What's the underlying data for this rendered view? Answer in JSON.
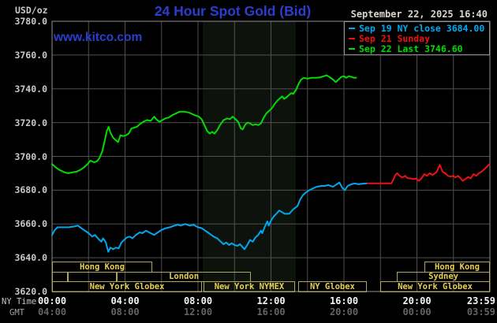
{
  "header": {
    "unit_label": "USD/oz",
    "title": "24 Hour Spot Gold (Bid)",
    "watermark": "www.kitco.com",
    "datetime": "September 22, 2025 16:40"
  },
  "colors": {
    "sep19": "#00a8f0",
    "sep21": "#ee1111",
    "sep22": "#00dd00",
    "grid": "#4f4f4f",
    "border": "#8f8f8f",
    "band": "#0d130c",
    "session": "#b0a558",
    "accent_blue": "#2c3ecf"
  },
  "legend": [
    {
      "label": "Sep 19 NY close 3684.00",
      "series": "sep19"
    },
    {
      "label": "Sep 21 Sunday",
      "series": "sep21"
    },
    {
      "label": "Sep 22 Last 3746.60",
      "series": "sep22"
    }
  ],
  "axes": {
    "y_ticks": [
      "3780.0",
      "3760.0",
      "3740.0",
      "3720.0",
      "3700.0",
      "3680.0",
      "3660.0",
      "3640.0",
      "3620.0"
    ],
    "x_row1_label": "NY Time",
    "x_row2_label": "GMT",
    "x_row1": [
      "00:00",
      "04:00",
      "08:00",
      "12:00",
      "16:00",
      "20:00",
      "23:59"
    ],
    "x_row2": [
      "04:00",
      "08:00",
      "12:00",
      "16:00",
      "20:00",
      "00:00",
      "03:59"
    ],
    "x_tick_hours": [
      0,
      4,
      8,
      12,
      16,
      20,
      23.983
    ]
  },
  "sessions": [
    {
      "row": 0,
      "label": "Hong Kong",
      "start": 0,
      "end": 5.49
    },
    {
      "row": 0,
      "label": "Hong Kong",
      "start": 20.41,
      "end": 24
    },
    {
      "row": 1,
      "label": "",
      "start": 0,
      "end": 0.87
    },
    {
      "row": 1,
      "label": "",
      "start": 0.87,
      "end": 3.55
    },
    {
      "row": 1,
      "label": "London",
      "start": 3.55,
      "end": 10.9
    },
    {
      "row": 1,
      "label": "Sydney",
      "start": 18.9,
      "end": 24
    },
    {
      "row": 2,
      "label": "New York Globex",
      "start": 0,
      "end": 8.22
    },
    {
      "row": 2,
      "label": "New York NYMEX",
      "start": 8.3,
      "end": 13.32
    },
    {
      "row": 2,
      "label": "NY Globex",
      "start": 13.49,
      "end": 17.25
    },
    {
      "row": 2,
      "label": "New York Globex",
      "start": 17.99,
      "end": 24
    }
  ],
  "chart_data": {
    "type": "line",
    "title": "24 Hour Spot Gold (Bid)",
    "xlabel": "NY Time (hours 00:00-23:59)",
    "ylabel": "USD/oz",
    "ylim": [
      3620,
      3780
    ],
    "y_tick_step": 20,
    "xlim_hours": [
      0,
      24
    ],
    "grid": true,
    "legend_position": "top-right",
    "shaded_band_hours": [
      8.26,
      13.36
    ],
    "series": [
      {
        "name": "Sep 19 NY close 3684.00",
        "series": "sep19",
        "points": [
          [
            0,
            3653.5
          ],
          [
            0.15,
            3656.5
          ],
          [
            0.3,
            3658
          ],
          [
            0.6,
            3658
          ],
          [
            0.9,
            3658
          ],
          [
            1.2,
            3658.5
          ],
          [
            1.42,
            3659
          ],
          [
            1.6,
            3657.5
          ],
          [
            1.8,
            3656
          ],
          [
            2.0,
            3654.5
          ],
          [
            2.2,
            3652.5
          ],
          [
            2.35,
            3653.5
          ],
          [
            2.55,
            3651
          ],
          [
            2.7,
            3649.5
          ],
          [
            2.8,
            3651.5
          ],
          [
            2.95,
            3649
          ],
          [
            3.08,
            3643.5
          ],
          [
            3.2,
            3646
          ],
          [
            3.35,
            3645
          ],
          [
            3.5,
            3646
          ],
          [
            3.65,
            3645.5
          ],
          [
            3.8,
            3649
          ],
          [
            3.95,
            3650.5
          ],
          [
            4.1,
            3652
          ],
          [
            4.25,
            3652.5
          ],
          [
            4.4,
            3651.5
          ],
          [
            4.6,
            3653.5
          ],
          [
            4.8,
            3655
          ],
          [
            4.95,
            3654.5
          ],
          [
            5.15,
            3656
          ],
          [
            5.4,
            3654.5
          ],
          [
            5.6,
            3653.5
          ],
          [
            5.8,
            3655
          ],
          [
            6.0,
            3656.5
          ],
          [
            6.25,
            3657.5
          ],
          [
            6.45,
            3658
          ],
          [
            6.7,
            3659
          ],
          [
            6.9,
            3659.5
          ],
          [
            7.05,
            3659
          ],
          [
            7.3,
            3660
          ],
          [
            7.55,
            3659
          ],
          [
            7.75,
            3659.5
          ],
          [
            8.0,
            3658
          ],
          [
            8.2,
            3657.5
          ],
          [
            8.4,
            3656
          ],
          [
            8.6,
            3654.5
          ],
          [
            8.85,
            3652.5
          ],
          [
            9.05,
            3651.5
          ],
          [
            9.25,
            3649.5
          ],
          [
            9.4,
            3648
          ],
          [
            9.55,
            3649
          ],
          [
            9.7,
            3647.5
          ],
          [
            9.85,
            3648.5
          ],
          [
            10.0,
            3647.5
          ],
          [
            10.15,
            3647
          ],
          [
            10.3,
            3648
          ],
          [
            10.42,
            3646.5
          ],
          [
            10.55,
            3645
          ],
          [
            10.7,
            3647.5
          ],
          [
            10.85,
            3650.5
          ],
          [
            11.0,
            3649.5
          ],
          [
            11.15,
            3652
          ],
          [
            11.3,
            3653.5
          ],
          [
            11.45,
            3656
          ],
          [
            11.52,
            3654.5
          ],
          [
            11.65,
            3658
          ],
          [
            11.8,
            3661.5
          ],
          [
            11.88,
            3659
          ],
          [
            12.0,
            3662
          ],
          [
            12.15,
            3664.5
          ],
          [
            12.3,
            3666
          ],
          [
            12.45,
            3668
          ],
          [
            12.6,
            3667
          ],
          [
            12.75,
            3666
          ],
          [
            13.0,
            3666
          ],
          [
            13.2,
            3668.5
          ],
          [
            13.45,
            3670.5
          ],
          [
            13.6,
            3674.5
          ],
          [
            13.75,
            3677
          ],
          [
            13.9,
            3678.5
          ],
          [
            14.1,
            3680
          ],
          [
            14.3,
            3681
          ],
          [
            14.5,
            3682
          ],
          [
            14.75,
            3682.5
          ],
          [
            14.95,
            3682.5
          ],
          [
            15.15,
            3683
          ],
          [
            15.4,
            3682
          ],
          [
            15.6,
            3683.5
          ],
          [
            15.75,
            3684.5
          ],
          [
            15.9,
            3681.5
          ],
          [
            16.05,
            3680
          ],
          [
            16.2,
            3682.5
          ],
          [
            16.4,
            3683.5
          ],
          [
            16.6,
            3684
          ],
          [
            16.8,
            3683.5
          ],
          [
            17.0,
            3683.8
          ],
          [
            17.25,
            3684
          ]
        ]
      },
      {
        "name": "Sep 21 Sunday",
        "series": "sep21",
        "points": [
          [
            17.3,
            3684
          ],
          [
            18.0,
            3684
          ],
          [
            18.6,
            3684
          ],
          [
            18.72,
            3686.5
          ],
          [
            18.82,
            3689
          ],
          [
            18.92,
            3690
          ],
          [
            19.05,
            3688.5
          ],
          [
            19.2,
            3687.5
          ],
          [
            19.35,
            3688.5
          ],
          [
            19.5,
            3687
          ],
          [
            19.65,
            3687
          ],
          [
            19.8,
            3686.5
          ],
          [
            19.95,
            3687
          ],
          [
            20.1,
            3685.5
          ],
          [
            20.25,
            3687
          ],
          [
            20.4,
            3689.5
          ],
          [
            20.55,
            3688.5
          ],
          [
            20.7,
            3690
          ],
          [
            20.85,
            3689
          ],
          [
            21.0,
            3690
          ],
          [
            21.1,
            3691
          ],
          [
            21.25,
            3695
          ],
          [
            21.4,
            3691
          ],
          [
            21.55,
            3690
          ],
          [
            21.7,
            3688.5
          ],
          [
            21.85,
            3688
          ],
          [
            22.0,
            3688.5
          ],
          [
            22.1,
            3687.5
          ],
          [
            22.25,
            3688.5
          ],
          [
            22.4,
            3687
          ],
          [
            22.5,
            3685.5
          ],
          [
            22.65,
            3686.5
          ],
          [
            22.8,
            3687.8
          ],
          [
            22.95,
            3687
          ],
          [
            23.1,
            3689.5
          ],
          [
            23.25,
            3688.5
          ],
          [
            23.4,
            3690
          ],
          [
            23.55,
            3691
          ],
          [
            23.7,
            3692.5
          ],
          [
            23.85,
            3694
          ],
          [
            23.98,
            3695.5
          ]
        ]
      },
      {
        "name": "Sep 22 Last 3746.60",
        "series": "sep22",
        "points": [
          [
            0,
            3695.5
          ],
          [
            0.2,
            3693.5
          ],
          [
            0.4,
            3692
          ],
          [
            0.7,
            3690.5
          ],
          [
            0.9,
            3690
          ],
          [
            1.1,
            3690.5
          ],
          [
            1.35,
            3691
          ],
          [
            1.55,
            3692
          ],
          [
            1.75,
            3693.5
          ],
          [
            1.95,
            3695.5
          ],
          [
            2.1,
            3697.5
          ],
          [
            2.3,
            3696.5
          ],
          [
            2.45,
            3697
          ],
          [
            2.6,
            3699
          ],
          [
            2.75,
            3703
          ],
          [
            2.9,
            3710
          ],
          [
            3.0,
            3715
          ],
          [
            3.1,
            3717.5
          ],
          [
            3.2,
            3714
          ],
          [
            3.35,
            3711
          ],
          [
            3.5,
            3709.5
          ],
          [
            3.62,
            3708.5
          ],
          [
            3.75,
            3712.5
          ],
          [
            3.9,
            3712
          ],
          [
            4.05,
            3712.5
          ],
          [
            4.2,
            3713.5
          ],
          [
            4.35,
            3716.5
          ],
          [
            4.5,
            3717
          ],
          [
            4.65,
            3717.5
          ],
          [
            4.8,
            3719
          ],
          [
            5.0,
            3720.5
          ],
          [
            5.2,
            3721.5
          ],
          [
            5.4,
            3721
          ],
          [
            5.6,
            3723.5
          ],
          [
            5.75,
            3721.5
          ],
          [
            5.9,
            3720.5
          ],
          [
            6.05,
            3721.5
          ],
          [
            6.2,
            3722.5
          ],
          [
            6.4,
            3723
          ],
          [
            6.6,
            3724.5
          ],
          [
            6.8,
            3725.5
          ],
          [
            7.0,
            3726.5
          ],
          [
            7.25,
            3726.5
          ],
          [
            7.5,
            3726
          ],
          [
            7.8,
            3724.5
          ],
          [
            8.05,
            3723.5
          ],
          [
            8.2,
            3722
          ],
          [
            8.35,
            3718.5
          ],
          [
            8.5,
            3715
          ],
          [
            8.65,
            3713.5
          ],
          [
            8.78,
            3714.5
          ],
          [
            8.9,
            3713.5
          ],
          [
            9.05,
            3715.5
          ],
          [
            9.2,
            3718.5
          ],
          [
            9.4,
            3721.5
          ],
          [
            9.6,
            3722.5
          ],
          [
            9.75,
            3722
          ],
          [
            9.9,
            3723.5
          ],
          [
            10.05,
            3722
          ],
          [
            10.2,
            3720.5
          ],
          [
            10.35,
            3716.5
          ],
          [
            10.45,
            3716
          ],
          [
            10.6,
            3719
          ],
          [
            10.72,
            3720
          ],
          [
            10.85,
            3719.5
          ],
          [
            11.0,
            3718.5
          ],
          [
            11.15,
            3719
          ],
          [
            11.3,
            3718.5
          ],
          [
            11.45,
            3719.5
          ],
          [
            11.6,
            3723
          ],
          [
            11.75,
            3725.5
          ],
          [
            11.9,
            3727
          ],
          [
            12.05,
            3728.5
          ],
          [
            12.2,
            3731
          ],
          [
            12.35,
            3733
          ],
          [
            12.5,
            3734.5
          ],
          [
            12.62,
            3735.5
          ],
          [
            12.72,
            3734
          ],
          [
            12.85,
            3735
          ],
          [
            13.0,
            3736.5
          ],
          [
            13.12,
            3737.5
          ],
          [
            13.22,
            3737
          ],
          [
            13.38,
            3739.5
          ],
          [
            13.52,
            3743
          ],
          [
            13.65,
            3745.5
          ],
          [
            13.8,
            3746.5
          ],
          [
            14.0,
            3746
          ],
          [
            14.2,
            3746.5
          ],
          [
            14.45,
            3746.5
          ],
          [
            14.7,
            3746.8
          ],
          [
            14.9,
            3747.5
          ],
          [
            15.05,
            3748
          ],
          [
            15.2,
            3747
          ],
          [
            15.4,
            3745.5
          ],
          [
            15.55,
            3744
          ],
          [
            15.7,
            3745.5
          ],
          [
            15.85,
            3747
          ],
          [
            16.0,
            3747.5
          ],
          [
            16.12,
            3746.5
          ],
          [
            16.27,
            3747.5
          ],
          [
            16.42,
            3747
          ],
          [
            16.55,
            3746.5
          ],
          [
            16.67,
            3746.6
          ]
        ]
      }
    ]
  }
}
